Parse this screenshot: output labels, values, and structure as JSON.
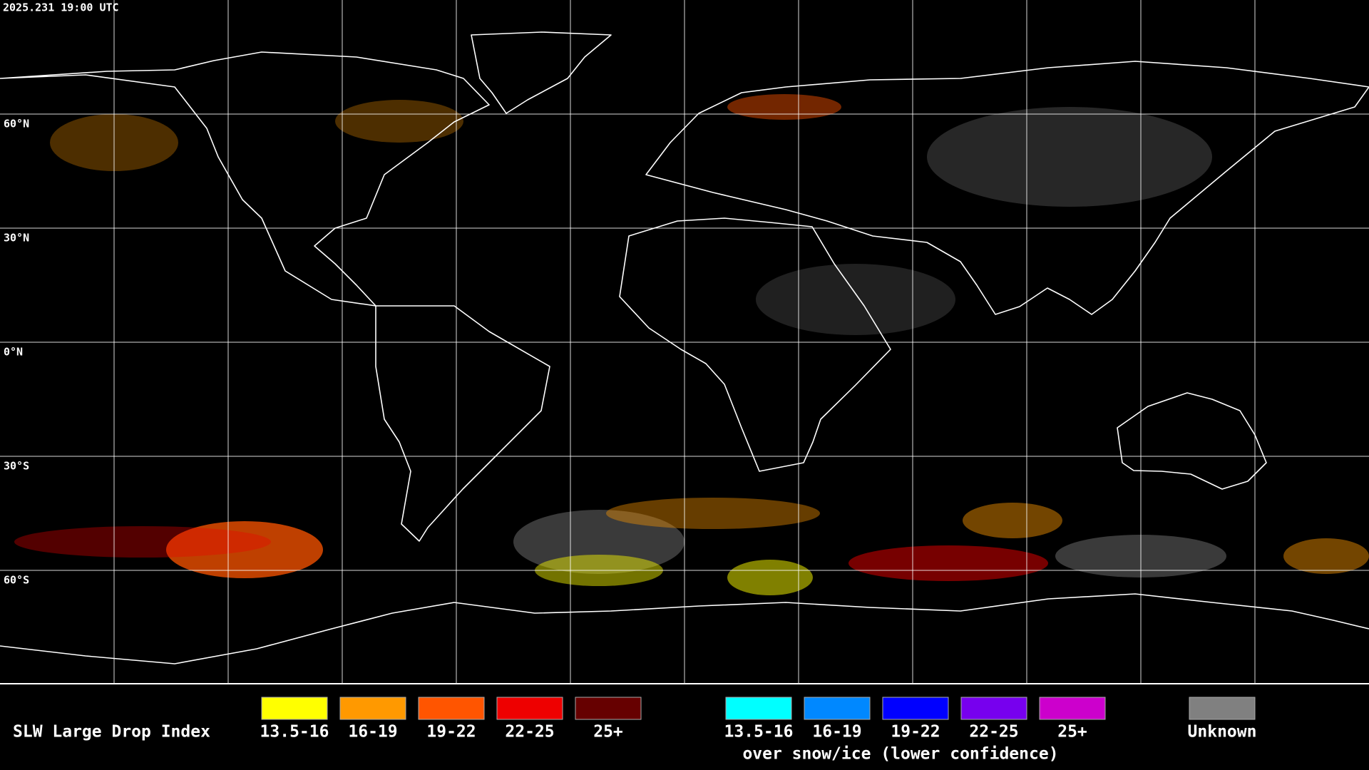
{
  "header": {
    "timestamp": "2025.231 19:00 UTC"
  },
  "map": {
    "lat_labels": [
      "60°N",
      "30°N",
      "0°N",
      "30°S",
      "60°S"
    ]
  },
  "legend": {
    "title": "SLW Large Drop Index",
    "main": [
      {
        "label": "13.5-16",
        "color": "#ffff00"
      },
      {
        "label": "16-19",
        "color": "#ff9900"
      },
      {
        "label": "19-22",
        "color": "#ff5500"
      },
      {
        "label": "22-25",
        "color": "#ee0000"
      },
      {
        "label": "25+",
        "color": "#660000"
      }
    ],
    "snow_ice": {
      "items": [
        {
          "label": "13.5-16",
          "color": "#00ffff"
        },
        {
          "label": "16-19",
          "color": "#0088ff"
        },
        {
          "label": "19-22",
          "color": "#0000ff"
        },
        {
          "label": "22-25",
          "color": "#7700ee"
        },
        {
          "label": "25+",
          "color": "#cc00cc"
        }
      ],
      "caption": "over snow/ice (lower confidence)"
    },
    "unknown": {
      "label": "Unknown",
      "color": "#808080"
    }
  }
}
